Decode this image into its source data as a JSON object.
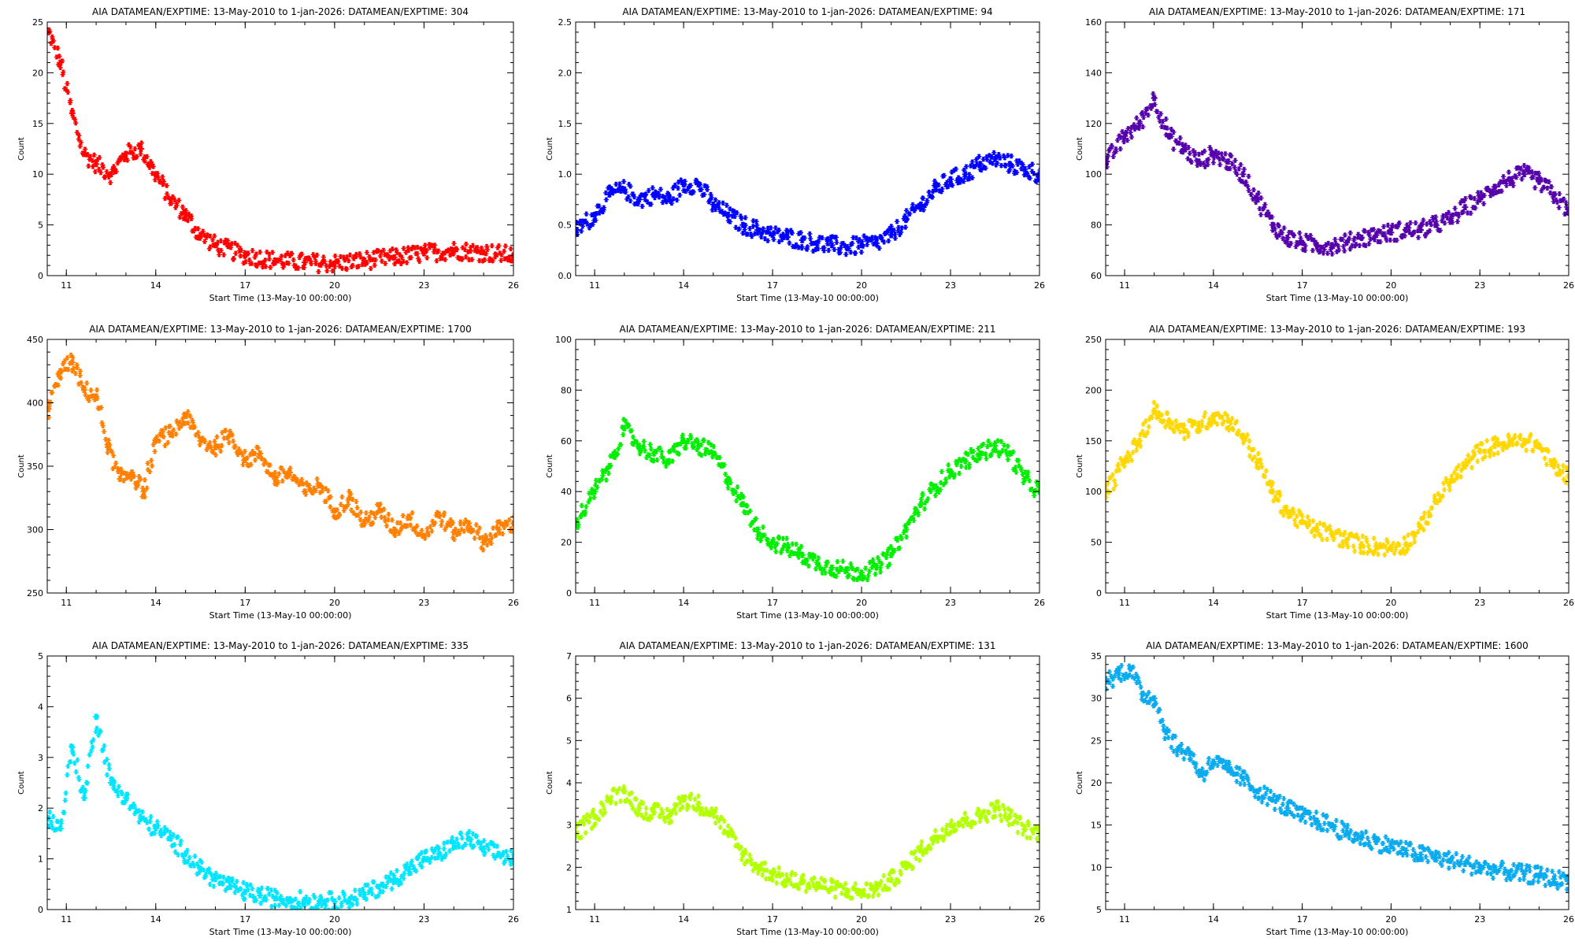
{
  "chart_data": [
    {
      "type": "scatter",
      "title": "AIA DATAMEAN/EXPTIME: 13-May-2010 to 1-jan-2026: DATAMEAN/EXPTIME: 304",
      "xlabel": "Start Time (13-May-10 00:00:00)",
      "ylabel": "Count",
      "xlim": [
        2010.36,
        2026.0
      ],
      "ylim": [
        0,
        25
      ],
      "xticks": [
        2011,
        2014,
        2017,
        2020,
        2023,
        2026
      ],
      "xtick_labels": [
        "11",
        "14",
        "17",
        "20",
        "23",
        "26"
      ],
      "yticks": [
        0,
        5,
        10,
        15,
        20,
        25
      ],
      "color": "#ff0000",
      "series": [
        {
          "x": [
            2010.4,
            2010.8,
            2011.2,
            2011.6,
            2012.0,
            2012.5,
            2013.0,
            2013.5,
            2014.0,
            2014.5,
            2015.0,
            2015.5,
            2016.0,
            2017.0,
            2018.0,
            2019.0,
            2020.0,
            2021.0,
            2022.0,
            2023.0,
            2024.0,
            2025.0,
            2026.0
          ],
          "y": [
            24,
            21,
            16,
            12,
            11,
            10,
            12,
            12.5,
            10,
            7.5,
            6,
            4,
            3,
            2,
            1.5,
            1.3,
            1.2,
            1.5,
            1.8,
            2.2,
            2.5,
            2.3,
            2.0
          ]
        }
      ]
    },
    {
      "type": "scatter",
      "title": "AIA DATAMEAN/EXPTIME: 13-May-2010 to 1-jan-2026: DATAMEAN/EXPTIME: 94",
      "xlabel": "Start Time (13-May-10 00:00:00)",
      "ylabel": "Count",
      "xlim": [
        2010.36,
        2026.0
      ],
      "ylim": [
        0,
        2.5
      ],
      "xticks": [
        2011,
        2014,
        2017,
        2020,
        2023,
        2026
      ],
      "xtick_labels": [
        "11",
        "14",
        "17",
        "20",
        "23",
        "26"
      ],
      "yticks": [
        0,
        0.5,
        1.0,
        1.5,
        2.0,
        2.5
      ],
      "ytick_labels": [
        "0.0",
        "0.5",
        "1.0",
        "1.5",
        "2.0",
        "2.5"
      ],
      "color": "#0000ff",
      "series": [
        {
          "x": [
            2010.4,
            2011.0,
            2011.5,
            2012.0,
            2012.5,
            2013.0,
            2013.5,
            2014.0,
            2014.5,
            2015.0,
            2015.5,
            2016.0,
            2016.5,
            2017.0,
            2017.5,
            2018.0,
            2018.5,
            2019.0,
            2019.5,
            2020.0,
            2020.5,
            2021.0,
            2021.5,
            2022.0,
            2022.5,
            2023.0,
            2023.5,
            2024.0,
            2024.5,
            2025.0,
            2025.5,
            2026.0
          ],
          "y": [
            0.45,
            0.6,
            0.8,
            0.85,
            0.75,
            0.8,
            0.75,
            0.9,
            0.9,
            0.7,
            0.6,
            0.5,
            0.45,
            0.4,
            0.38,
            0.35,
            0.32,
            0.3,
            0.28,
            0.3,
            0.32,
            0.4,
            0.55,
            0.7,
            0.85,
            0.95,
            1.0,
            1.1,
            1.15,
            1.1,
            1.05,
            1.0
          ]
        }
      ]
    },
    {
      "type": "scatter",
      "title": "AIA DATAMEAN/EXPTIME: 13-May-2010 to 1-jan-2026: DATAMEAN/EXPTIME: 171",
      "xlabel": "Start Time (13-May-10 00:00:00)",
      "ylabel": "Count",
      "xlim": [
        2010.36,
        2026.0
      ],
      "ylim": [
        60,
        160
      ],
      "xticks": [
        2011,
        2014,
        2017,
        2020,
        2023,
        2026
      ],
      "xtick_labels": [
        "11",
        "14",
        "17",
        "20",
        "23",
        "26"
      ],
      "yticks": [
        60,
        80,
        100,
        120,
        140,
        160
      ],
      "color": "#5500aa",
      "series": [
        {
          "x": [
            2010.4,
            2011.0,
            2011.5,
            2012.0,
            2012.5,
            2013.0,
            2013.5,
            2014.0,
            2014.5,
            2015.0,
            2015.5,
            2016.0,
            2016.5,
            2017.0,
            2017.5,
            2018.0,
            2018.5,
            2019.0,
            2019.5,
            2020.0,
            2020.5,
            2021.0,
            2021.5,
            2022.0,
            2022.5,
            2023.0,
            2023.5,
            2024.0,
            2024.5,
            2025.0,
            2025.5,
            2026.0
          ],
          "y": [
            105,
            115,
            120,
            130,
            115,
            110,
            105,
            108,
            105,
            100,
            90,
            80,
            75,
            73,
            72,
            72,
            73,
            75,
            76,
            77,
            78,
            78,
            80,
            82,
            87,
            90,
            95,
            98,
            100,
            97,
            92,
            85
          ]
        }
      ]
    },
    {
      "type": "scatter",
      "title": "AIA DATAMEAN/EXPTIME: 13-May-2010 to 1-jan-2026: DATAMEAN/EXPTIME: 1700",
      "xlabel": "Start Time (13-May-10 00:00:00)",
      "ylabel": "Count",
      "xlim": [
        2010.36,
        2026.0
      ],
      "ylim": [
        250,
        450
      ],
      "xticks": [
        2011,
        2014,
        2017,
        2020,
        2023,
        2026
      ],
      "xtick_labels": [
        "11",
        "14",
        "17",
        "20",
        "23",
        "26"
      ],
      "yticks": [
        250,
        300,
        350,
        400,
        450
      ],
      "color": "#ff7f00",
      "series": [
        {
          "x": [
            2010.4,
            2010.8,
            2011.2,
            2011.6,
            2012.0,
            2012.4,
            2012.8,
            2013.2,
            2013.6,
            2014.0,
            2014.5,
            2015.0,
            2015.5,
            2016.0,
            2016.5,
            2017.0,
            2017.5,
            2018.0,
            2018.5,
            2019.0,
            2019.5,
            2020.0,
            2020.5,
            2021.0,
            2021.5,
            2022.0,
            2022.5,
            2023.0,
            2023.5,
            2024.0,
            2024.5,
            2025.0,
            2025.5,
            2026.0
          ],
          "y": [
            395,
            425,
            432,
            410,
            405,
            365,
            340,
            345,
            330,
            370,
            375,
            390,
            370,
            365,
            375,
            355,
            360,
            340,
            345,
            330,
            335,
            315,
            325,
            305,
            315,
            300,
            310,
            295,
            312,
            298,
            305,
            290,
            300,
            305
          ]
        }
      ]
    },
    {
      "type": "scatter",
      "title": "AIA DATAMEAN/EXPTIME: 13-May-2010 to 1-jan-2026: DATAMEAN/EXPTIME: 211",
      "xlabel": "Start Time (13-May-10 00:00:00)",
      "ylabel": "Count",
      "xlim": [
        2010.36,
        2026.0
      ],
      "ylim": [
        0,
        100
      ],
      "xticks": [
        2011,
        2014,
        2017,
        2020,
        2023,
        2026
      ],
      "xtick_labels": [
        "11",
        "14",
        "17",
        "20",
        "23",
        "26"
      ],
      "yticks": [
        0,
        20,
        40,
        60,
        80,
        100
      ],
      "color": "#00ee00",
      "series": [
        {
          "x": [
            2010.4,
            2011.0,
            2011.5,
            2012.0,
            2012.5,
            2013.0,
            2013.5,
            2014.0,
            2014.5,
            2015.0,
            2015.5,
            2016.0,
            2016.5,
            2017.0,
            2017.5,
            2018.0,
            2018.5,
            2019.0,
            2019.5,
            2020.0,
            2020.5,
            2021.0,
            2021.5,
            2022.0,
            2022.5,
            2023.0,
            2023.5,
            2024.0,
            2024.5,
            2025.0,
            2025.5,
            2026.0
          ],
          "y": [
            28,
            40,
            50,
            65,
            58,
            55,
            52,
            60,
            58,
            55,
            45,
            35,
            25,
            20,
            18,
            15,
            12,
            10,
            9,
            8,
            10,
            15,
            25,
            35,
            42,
            48,
            52,
            55,
            58,
            55,
            45,
            40
          ]
        }
      ]
    },
    {
      "type": "scatter",
      "title": "AIA DATAMEAN/EXPTIME: 13-May-2010 to 1-jan-2026: DATAMEAN/EXPTIME: 193",
      "xlabel": "Start Time (13-May-10 00:00:00)",
      "ylabel": "Count",
      "xlim": [
        2010.36,
        2026.0
      ],
      "ylim": [
        0,
        250
      ],
      "xticks": [
        2011,
        2014,
        2017,
        2020,
        2023,
        2026
      ],
      "xtick_labels": [
        "11",
        "14",
        "17",
        "20",
        "23",
        "26"
      ],
      "yticks": [
        0,
        50,
        100,
        150,
        200,
        250
      ],
      "color": "#ffd700",
      "series": [
        {
          "x": [
            2010.4,
            2011.0,
            2011.5,
            2012.0,
            2012.5,
            2013.0,
            2013.5,
            2014.0,
            2014.5,
            2015.0,
            2015.5,
            2016.0,
            2016.5,
            2017.0,
            2017.5,
            2018.0,
            2018.5,
            2019.0,
            2019.5,
            2020.0,
            2020.5,
            2021.0,
            2021.5,
            2022.0,
            2022.5,
            2023.0,
            2023.5,
            2024.0,
            2024.5,
            2025.0,
            2025.5,
            2026.0
          ],
          "y": [
            100,
            130,
            150,
            180,
            170,
            160,
            165,
            175,
            170,
            155,
            130,
            100,
            80,
            70,
            62,
            58,
            52,
            48,
            46,
            45,
            48,
            65,
            90,
            110,
            125,
            140,
            145,
            148,
            150,
            145,
            125,
            115
          ]
        }
      ]
    },
    {
      "type": "scatter",
      "title": "AIA DATAMEAN/EXPTIME: 13-May-2010 to 1-jan-2026: DATAMEAN/EXPTIME: 335",
      "xlabel": "Start Time (13-May-10 00:00:00)",
      "ylabel": "Count",
      "xlim": [
        2010.36,
        2026.0
      ],
      "ylim": [
        0,
        5
      ],
      "xticks": [
        2011,
        2014,
        2017,
        2020,
        2023,
        2026
      ],
      "xtick_labels": [
        "11",
        "14",
        "17",
        "20",
        "23",
        "26"
      ],
      "yticks": [
        0,
        1,
        2,
        3,
        4,
        5
      ],
      "color": "#00e5ff",
      "series": [
        {
          "x": [
            2010.4,
            2010.8,
            2011.2,
            2011.6,
            2012.0,
            2012.5,
            2013.0,
            2013.5,
            2014.0,
            2014.5,
            2015.0,
            2015.5,
            2016.0,
            2016.5,
            2017.0,
            2017.5,
            2018.0,
            2018.5,
            2019.0,
            2019.5,
            2020.0,
            2020.5,
            2021.0,
            2021.5,
            2022.0,
            2022.5,
            2023.0,
            2023.5,
            2024.0,
            2024.5,
            2025.0,
            2025.5,
            2026.0
          ],
          "y": [
            1.8,
            1.6,
            3.2,
            2.2,
            3.8,
            2.5,
            2.2,
            1.8,
            1.6,
            1.4,
            1.1,
            0.8,
            0.6,
            0.45,
            0.35,
            0.28,
            0.22,
            0.2,
            0.18,
            0.17,
            0.16,
            0.2,
            0.3,
            0.45,
            0.6,
            0.8,
            1.0,
            1.1,
            1.3,
            1.4,
            1.2,
            1.1,
            1.0
          ]
        }
      ]
    },
    {
      "type": "scatter",
      "title": "AIA DATAMEAN/EXPTIME: 13-May-2010 to 1-jan-2026: DATAMEAN/EXPTIME: 131",
      "xlabel": "Start Time (13-May-10 00:00:00)",
      "ylabel": "Count",
      "xlim": [
        2010.36,
        2026.0
      ],
      "ylim": [
        1,
        7
      ],
      "xticks": [
        2011,
        2014,
        2017,
        2020,
        2023,
        2026
      ],
      "xtick_labels": [
        "11",
        "14",
        "17",
        "20",
        "23",
        "26"
      ],
      "yticks": [
        1,
        2,
        3,
        4,
        5,
        6,
        7
      ],
      "color": "#b2ff00",
      "series": [
        {
          "x": [
            2010.4,
            2011.0,
            2011.5,
            2012.0,
            2012.5,
            2013.0,
            2013.5,
            2014.0,
            2014.5,
            2015.0,
            2015.5,
            2016.0,
            2016.5,
            2017.0,
            2017.5,
            2018.0,
            2018.5,
            2019.0,
            2019.5,
            2020.0,
            2020.5,
            2021.0,
            2021.5,
            2022.0,
            2022.5,
            2023.0,
            2023.5,
            2024.0,
            2024.5,
            2025.0,
            2025.5,
            2026.0
          ],
          "y": [
            2.8,
            3.2,
            3.6,
            3.8,
            3.4,
            3.3,
            3.2,
            3.6,
            3.5,
            3.3,
            2.8,
            2.3,
            2.0,
            1.85,
            1.7,
            1.65,
            1.6,
            1.5,
            1.45,
            1.42,
            1.5,
            1.7,
            2.0,
            2.4,
            2.7,
            3.0,
            3.1,
            3.2,
            3.4,
            3.2,
            2.9,
            2.8
          ]
        }
      ]
    },
    {
      "type": "scatter",
      "title": "AIA DATAMEAN/EXPTIME: 13-May-2010 to 1-jan-2026: DATAMEAN/EXPTIME: 1600",
      "xlabel": "Start Time (13-May-10 00:00:00)",
      "ylabel": "Count",
      "xlim": [
        2010.36,
        2026.0
      ],
      "ylim": [
        5,
        35
      ],
      "xticks": [
        2011,
        2014,
        2017,
        2020,
        2023,
        2026
      ],
      "xtick_labels": [
        "11",
        "14",
        "17",
        "20",
        "23",
        "26"
      ],
      "yticks": [
        5,
        10,
        15,
        20,
        25,
        30,
        35
      ],
      "color": "#0aaaee",
      "series": [
        {
          "x": [
            2010.4,
            2010.8,
            2011.2,
            2011.6,
            2012.0,
            2012.4,
            2012.8,
            2013.2,
            2013.6,
            2014.0,
            2014.5,
            2015.0,
            2015.5,
            2016.0,
            2016.5,
            2017.0,
            2017.5,
            2018.0,
            2018.5,
            2019.0,
            2019.5,
            2020.0,
            2020.5,
            2021.0,
            2021.5,
            2022.0,
            2022.5,
            2023.0,
            2023.5,
            2024.0,
            2024.5,
            2025.0,
            2025.5,
            2026.0
          ],
          "y": [
            32,
            33,
            33.5,
            30.5,
            30,
            26,
            24,
            23.5,
            21,
            22.5,
            21.5,
            20.5,
            19,
            18,
            17,
            16,
            15.5,
            15,
            14,
            13.5,
            13,
            12.5,
            12,
            11.5,
            11.2,
            10.8,
            10.4,
            10,
            9.7,
            9.4,
            9.2,
            9.0,
            8.6,
            8.4
          ]
        }
      ]
    }
  ]
}
